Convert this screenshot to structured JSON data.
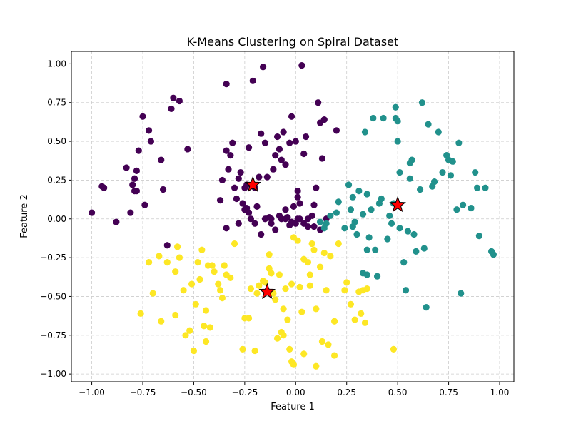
{
  "chart_data": {
    "type": "scatter",
    "title": "K-Means Clustering on Spiral Dataset",
    "xlabel": "Feature 1",
    "ylabel": "Feature 2",
    "xlim": [
      -1.1,
      1.07
    ],
    "ylim": [
      -1.05,
      1.08
    ],
    "xticks": [
      -1.0,
      -0.75,
      -0.5,
      -0.25,
      0.0,
      0.25,
      0.5,
      0.75,
      1.0
    ],
    "xtick_labels": [
      "−1.00",
      "−0.75",
      "−0.50",
      "−0.25",
      "0.00",
      "0.25",
      "0.50",
      "0.75",
      "1.00"
    ],
    "yticks": [
      -1.0,
      -0.75,
      -0.5,
      -0.25,
      0.0,
      0.25,
      0.5,
      0.75,
      1.0
    ],
    "ytick_labels": [
      "−1.00",
      "−0.75",
      "−0.50",
      "−0.25",
      "0.00",
      "0.25",
      "0.50",
      "0.75",
      "1.00"
    ],
    "grid": true,
    "grid_style": "dashed",
    "series": [
      {
        "color": "#440154",
        "points": [
          [
            -1.0,
            0.04
          ],
          [
            -0.95,
            0.21
          ],
          [
            -0.94,
            0.2
          ],
          [
            -0.88,
            -0.02
          ],
          [
            -0.83,
            0.33
          ],
          [
            -0.81,
            0.04
          ],
          [
            -0.8,
            0.22
          ],
          [
            -0.79,
            0.26
          ],
          [
            -0.78,
            0.31
          ],
          [
            -0.79,
            0.18
          ],
          [
            -0.77,
            0.44
          ],
          [
            -0.78,
            0.18
          ],
          [
            -0.75,
            0.66
          ],
          [
            -0.74,
            0.09
          ],
          [
            -0.72,
            0.57
          ],
          [
            -0.71,
            0.5
          ],
          [
            -0.66,
            0.38
          ],
          [
            -0.65,
            0.19
          ],
          [
            -0.63,
            -0.17
          ],
          [
            -0.61,
            0.71
          ],
          [
            -0.6,
            0.78
          ],
          [
            -0.57,
            0.76
          ],
          [
            -0.53,
            0.45
          ],
          [
            -0.34,
            0.87
          ],
          [
            -0.37,
            0.12
          ],
          [
            -0.36,
            0.25
          ],
          [
            -0.34,
            0.44
          ],
          [
            -0.33,
            0.32
          ],
          [
            -0.32,
            0.41
          ],
          [
            -0.31,
            0.49
          ],
          [
            -0.3,
            0.2
          ],
          [
            -0.29,
            0.13
          ],
          [
            -0.28,
            0.26
          ],
          [
            -0.27,
            0.3
          ],
          [
            -0.26,
            0.1
          ],
          [
            -0.25,
            0.2
          ],
          [
            -0.24,
            0.07
          ],
          [
            -0.23,
            0.04
          ],
          [
            -0.24,
            0.22
          ],
          [
            -0.23,
            0.46
          ],
          [
            -0.21,
            0.89
          ],
          [
            -0.22,
            0.0
          ],
          [
            -0.2,
            0.2
          ],
          [
            -0.19,
            0.08
          ],
          [
            -0.18,
            0.27
          ],
          [
            -0.17,
            0.55
          ],
          [
            -0.16,
            0.98
          ],
          [
            -0.15,
            0.49
          ],
          [
            -0.14,
            0.27
          ],
          [
            -0.13,
            0.01
          ],
          [
            -0.12,
            0.0
          ],
          [
            -0.11,
            0.32
          ],
          [
            -0.1,
            0.41
          ],
          [
            -0.09,
            0.53
          ],
          [
            -0.08,
            0.45
          ],
          [
            -0.07,
            0.38
          ],
          [
            -0.06,
            0.56
          ],
          [
            -0.05,
            0.35
          ],
          [
            -0.04,
            0.01
          ],
          [
            -0.03,
            0.49
          ],
          [
            -0.02,
            0.66
          ],
          [
            -0.01,
            0.08
          ],
          [
            0.0,
            0.5
          ],
          [
            0.01,
            0.18
          ],
          [
            0.02,
            0.1
          ],
          [
            0.03,
            0.99
          ],
          [
            0.04,
            0.42
          ],
          [
            0.05,
            0.53
          ],
          [
            0.06,
            0.0
          ],
          [
            0.08,
            0.02
          ],
          [
            0.09,
            0.09
          ],
          [
            0.1,
            0.2
          ],
          [
            0.11,
            0.75
          ],
          [
            0.12,
            0.62
          ],
          [
            0.13,
            0.39
          ],
          [
            0.14,
            0.64
          ],
          [
            0.15,
            0.0
          ],
          [
            0.2,
            0.57
          ],
          [
            -0.2,
            -0.03
          ],
          [
            -0.15,
            0.0
          ],
          [
            -0.12,
            -0.03
          ],
          [
            -0.1,
            -0.07
          ],
          [
            -0.07,
            0.0
          ],
          [
            -0.05,
            0.0
          ],
          [
            -0.03,
            -0.04
          ],
          [
            -0.02,
            -0.02
          ],
          [
            0.0,
            -0.03
          ],
          [
            0.01,
            0.0
          ],
          [
            0.04,
            -0.03
          ],
          [
            0.06,
            -0.05
          ],
          [
            0.09,
            -0.05
          ],
          [
            0.12,
            -0.07
          ],
          [
            -0.34,
            -0.06
          ],
          [
            -0.28,
            -0.03
          ],
          [
            -0.25,
            0.06
          ],
          [
            -0.17,
            -0.1
          ],
          [
            -0.08,
            0.02
          ],
          [
            -0.05,
            0.06
          ],
          [
            0.01,
            0.14
          ],
          [
            0.02,
            0.0
          ]
        ]
      },
      {
        "color": "#21918c",
        "points": [
          [
            0.12,
            -0.02
          ],
          [
            0.15,
            -0.03
          ],
          [
            0.17,
            0.02
          ],
          [
            0.2,
            0.04
          ],
          [
            0.21,
            0.11
          ],
          [
            0.24,
            -0.06
          ],
          [
            0.26,
            0.22
          ],
          [
            0.27,
            0.06
          ],
          [
            0.28,
            0.14
          ],
          [
            0.28,
            -0.05
          ],
          [
            0.29,
            -0.02
          ],
          [
            0.3,
            -0.1
          ],
          [
            0.31,
            0.18
          ],
          [
            0.33,
            0.03
          ],
          [
            0.34,
            0.56
          ],
          [
            0.35,
            0.16
          ],
          [
            0.35,
            -0.2
          ],
          [
            0.35,
            -0.36
          ],
          [
            0.36,
            -0.12
          ],
          [
            0.37,
            0.06
          ],
          [
            0.38,
            0.65
          ],
          [
            0.39,
            -0.2
          ],
          [
            0.41,
            0.1
          ],
          [
            0.42,
            0.13
          ],
          [
            0.43,
            0.65
          ],
          [
            0.45,
            -0.13
          ],
          [
            0.46,
            0.02
          ],
          [
            0.47,
            -0.03
          ],
          [
            0.48,
            0.1
          ],
          [
            0.49,
            0.72
          ],
          [
            0.49,
            0.65
          ],
          [
            0.5,
            0.63
          ],
          [
            0.5,
            0.5
          ],
          [
            0.51,
            -0.06
          ],
          [
            0.51,
            0.3
          ],
          [
            0.53,
            -0.28
          ],
          [
            0.54,
            -0.46
          ],
          [
            0.55,
            -0.08
          ],
          [
            0.56,
            0.36
          ],
          [
            0.56,
            0.26
          ],
          [
            0.57,
            0.38
          ],
          [
            0.58,
            -0.1
          ],
          [
            0.59,
            -0.21
          ],
          [
            0.61,
            0.19
          ],
          [
            0.62,
            0.75
          ],
          [
            0.63,
            -0.19
          ],
          [
            0.64,
            -0.57
          ],
          [
            0.65,
            0.61
          ],
          [
            0.67,
            0.21
          ],
          [
            0.68,
            0.24
          ],
          [
            0.7,
            0.56
          ],
          [
            0.72,
            0.3
          ],
          [
            0.74,
            0.41
          ],
          [
            0.75,
            0.38
          ],
          [
            0.76,
            0.28
          ],
          [
            0.77,
            0.37
          ],
          [
            0.79,
            0.06
          ],
          [
            0.8,
            0.49
          ],
          [
            0.81,
            -0.48
          ],
          [
            0.82,
            0.09
          ],
          [
            0.86,
            0.07
          ],
          [
            0.88,
            0.3
          ],
          [
            0.89,
            0.2
          ],
          [
            0.9,
            -0.11
          ],
          [
            0.93,
            0.2
          ],
          [
            0.96,
            -0.21
          ],
          [
            0.97,
            -0.23
          ],
          [
            0.14,
            -0.06
          ],
          [
            0.33,
            -0.35
          ],
          [
            0.4,
            -0.37
          ]
        ]
      },
      {
        "color": "#fde725",
        "points": [
          [
            -0.76,
            -0.61
          ],
          [
            -0.72,
            -0.28
          ],
          [
            -0.7,
            -0.48
          ],
          [
            -0.67,
            -0.24
          ],
          [
            -0.66,
            -0.66
          ],
          [
            -0.63,
            -0.28
          ],
          [
            -0.59,
            -0.62
          ],
          [
            -0.59,
            -0.34
          ],
          [
            -0.58,
            -0.18
          ],
          [
            -0.57,
            -0.25
          ],
          [
            -0.55,
            -0.46
          ],
          [
            -0.54,
            -0.75
          ],
          [
            -0.52,
            -0.72
          ],
          [
            -0.51,
            -0.42
          ],
          [
            -0.5,
            -0.85
          ],
          [
            -0.49,
            -0.55
          ],
          [
            -0.48,
            -0.28
          ],
          [
            -0.47,
            -0.39
          ],
          [
            -0.46,
            -0.2
          ],
          [
            -0.45,
            -0.69
          ],
          [
            -0.44,
            -0.79
          ],
          [
            -0.44,
            -0.59
          ],
          [
            -0.43,
            -0.3
          ],
          [
            -0.42,
            -0.7
          ],
          [
            -0.41,
            -0.3
          ],
          [
            -0.4,
            -0.34
          ],
          [
            -0.38,
            -0.42
          ],
          [
            -0.37,
            -0.46
          ],
          [
            -0.36,
            -0.51
          ],
          [
            -0.35,
            -0.3
          ],
          [
            -0.34,
            -0.36
          ],
          [
            -0.32,
            -0.38
          ],
          [
            -0.3,
            -0.16
          ],
          [
            -0.26,
            -0.84
          ],
          [
            -0.25,
            -0.64
          ],
          [
            -0.23,
            -0.64
          ],
          [
            -0.22,
            -0.45
          ],
          [
            -0.2,
            -0.85
          ],
          [
            -0.19,
            -0.48
          ],
          [
            -0.18,
            -0.43
          ],
          [
            -0.16,
            -0.4
          ],
          [
            -0.15,
            -0.41
          ],
          [
            -0.13,
            -0.23
          ],
          [
            -0.13,
            -0.32
          ],
          [
            -0.12,
            -0.35
          ],
          [
            -0.11,
            -0.48
          ],
          [
            -0.1,
            -0.52
          ],
          [
            -0.09,
            -0.77
          ],
          [
            -0.07,
            -0.73
          ],
          [
            -0.06,
            -0.58
          ],
          [
            -0.06,
            -0.75
          ],
          [
            -0.05,
            -0.45
          ],
          [
            -0.04,
            -0.65
          ],
          [
            -0.03,
            -0.84
          ],
          [
            -0.02,
            -0.92
          ],
          [
            -0.01,
            -0.94
          ],
          [
            -0.01,
            -0.12
          ],
          [
            0.01,
            -0.14
          ],
          [
            0.02,
            -0.44
          ],
          [
            0.03,
            -0.6
          ],
          [
            0.04,
            -0.87
          ],
          [
            0.06,
            -0.28
          ],
          [
            0.07,
            -0.43
          ],
          [
            0.08,
            -0.16
          ],
          [
            0.09,
            -0.2
          ],
          [
            0.1,
            -0.58
          ],
          [
            0.1,
            -0.95
          ],
          [
            0.12,
            -0.31
          ],
          [
            0.13,
            -0.79
          ],
          [
            0.14,
            -0.22
          ],
          [
            0.15,
            -0.46
          ],
          [
            0.16,
            -0.81
          ],
          [
            0.17,
            -0.24
          ],
          [
            0.19,
            -0.66
          ],
          [
            0.19,
            -0.88
          ],
          [
            0.21,
            -0.16
          ],
          [
            0.24,
            -0.46
          ],
          [
            0.25,
            -0.41
          ],
          [
            0.27,
            -0.55
          ],
          [
            0.29,
            -0.65
          ],
          [
            0.31,
            -0.47
          ],
          [
            0.32,
            -0.61
          ],
          [
            0.33,
            -0.46
          ],
          [
            0.34,
            -0.67
          ],
          [
            0.35,
            -0.45
          ],
          [
            0.48,
            -0.84
          ],
          [
            0.04,
            -0.26
          ],
          [
            0.07,
            -0.36
          ],
          [
            -0.08,
            -0.36
          ],
          [
            -0.02,
            -0.42
          ]
        ]
      }
    ],
    "centroids": {
      "color": "#ff0000",
      "points": [
        [
          -0.21,
          0.22
        ],
        [
          0.5,
          0.09
        ],
        [
          -0.14,
          -0.47
        ]
      ]
    }
  }
}
